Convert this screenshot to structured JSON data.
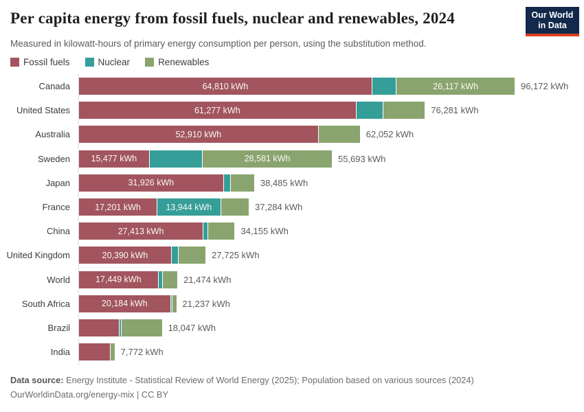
{
  "header": {
    "title": "Per capita energy from fossil fuels, nuclear and renewables, 2024",
    "subtitle": "Measured in kilowatt-hours of primary energy consumption per person, using the substitution method."
  },
  "logo": {
    "line1": "Our World",
    "line2": "in Data",
    "bg_color": "#12294b",
    "accent_color": "#dc3e22"
  },
  "legend": {
    "items": [
      {
        "label": "Fossil fuels",
        "color": "#a2555e"
      },
      {
        "label": "Nuclear",
        "color": "#359e98"
      },
      {
        "label": "Renewables",
        "color": "#8aa46f"
      }
    ]
  },
  "chart_data": {
    "type": "bar",
    "orientation": "horizontal",
    "stacked": true,
    "unit": "kWh",
    "title": "Per capita energy from fossil fuels, nuclear and renewables, 2024",
    "subtitle": "Measured in kilowatt-hours of primary energy consumption per person, using the substitution method.",
    "series_names": [
      "Fossil fuels",
      "Nuclear",
      "Renewables"
    ],
    "colors": {
      "fossil": "#a2555e",
      "nuclear": "#359e98",
      "renewables": "#8aa46f"
    },
    "xmax": 96172,
    "categories": [
      "Canada",
      "United States",
      "Australia",
      "Sweden",
      "Japan",
      "France",
      "China",
      "United Kingdom",
      "World",
      "South Africa",
      "Brazil",
      "India"
    ],
    "rows": [
      {
        "country": "Canada",
        "values": {
          "fossil": 64810,
          "nuclear": 5245,
          "renewables": 26117
        },
        "labels": {
          "fossil": "64,810 kWh",
          "renewables": "26,117 kWh"
        },
        "total": 96172,
        "total_label": "96,172 kWh"
      },
      {
        "country": "United States",
        "values": {
          "fossil": 61277,
          "nuclear": 5902,
          "renewables": 9102
        },
        "labels": {
          "fossil": "61,277 kWh"
        },
        "total": 76281,
        "total_label": "76,281 kWh"
      },
      {
        "country": "Australia",
        "values": {
          "fossil": 52910,
          "nuclear": 0,
          "renewables": 9142
        },
        "labels": {
          "fossil": "52,910 kWh"
        },
        "total": 62052,
        "total_label": "62,052 kWh"
      },
      {
        "country": "Sweden",
        "values": {
          "fossil": 15477,
          "nuclear": 11635,
          "renewables": 28581
        },
        "labels": {
          "fossil": "15,477 kWh",
          "renewables": "28,581 kWh"
        },
        "total": 55693,
        "total_label": "55,693 kWh"
      },
      {
        "country": "Japan",
        "values": {
          "fossil": 31926,
          "nuclear": 1450,
          "renewables": 5109
        },
        "labels": {
          "fossil": "31,926 kWh"
        },
        "total": 38485,
        "total_label": "38,485 kWh"
      },
      {
        "country": "France",
        "values": {
          "fossil": 17201,
          "nuclear": 13944,
          "renewables": 6139
        },
        "labels": {
          "fossil": "17,201 kWh",
          "nuclear": "13,944 kWh"
        },
        "total": 37284,
        "total_label": "37,284 kWh"
      },
      {
        "country": "China",
        "values": {
          "fossil": 27413,
          "nuclear": 900,
          "renewables": 5842
        },
        "labels": {
          "fossil": "27,413 kWh"
        },
        "total": 34155,
        "total_label": "34,155 kWh"
      },
      {
        "country": "United Kingdom",
        "values": {
          "fossil": 20390,
          "nuclear": 1370,
          "renewables": 5965
        },
        "labels": {
          "fossil": "20,390 kWh"
        },
        "total": 27725,
        "total_label": "27,725 kWh"
      },
      {
        "country": "World",
        "values": {
          "fossil": 17449,
          "nuclear": 760,
          "renewables": 3265
        },
        "labels": {
          "fossil": "17,449 kWh"
        },
        "total": 21474,
        "total_label": "21,474 kWh"
      },
      {
        "country": "South Africa",
        "values": {
          "fossil": 20184,
          "nuclear": 250,
          "renewables": 803
        },
        "labels": {
          "fossil": "20,184 kWh"
        },
        "total": 21237,
        "total_label": "21,237 kWh"
      },
      {
        "country": "Brazil",
        "values": {
          "fossil": 8850,
          "nuclear": 230,
          "renewables": 8967
        },
        "labels": {},
        "total": 18047,
        "total_label": "18,047 kWh"
      },
      {
        "country": "India",
        "values": {
          "fossil": 6850,
          "nuclear": 60,
          "renewables": 862
        },
        "labels": {},
        "total": 7772,
        "total_label": "7,772 kWh"
      }
    ]
  },
  "footer": {
    "source_label": "Data source:",
    "source_text": "Energy Institute - Statistical Review of World Energy (2025); Population based on various sources (2024)",
    "credit": "OurWorldinData.org/energy-mix | CC BY"
  }
}
